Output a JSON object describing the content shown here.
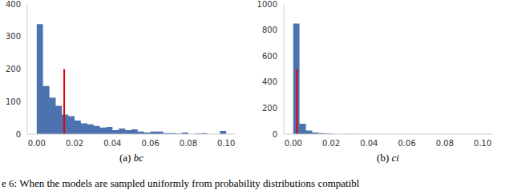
{
  "chart_data": [
    {
      "type": "histogram",
      "title": "(a) bc",
      "color": "#4c72b0",
      "bins": [
        0,
        0.0033,
        0.0067,
        0.01,
        0.0133,
        0.0167,
        0.02,
        0.0233,
        0.0267,
        0.03,
        0.0333,
        0.0367,
        0.04,
        0.0433,
        0.0467,
        0.05,
        0.0533,
        0.0567,
        0.06,
        0.0633,
        0.0667,
        0.07,
        0.0733,
        0.0767,
        0.08,
        0.0833,
        0.0867,
        0.09,
        0.0933,
        0.0967,
        0.1
      ],
      "counts": [
        338,
        148,
        112,
        87,
        60,
        55,
        42,
        33,
        30,
        25,
        20,
        22,
        12,
        17,
        12,
        15,
        8,
        5,
        8,
        8,
        3,
        3,
        2,
        5,
        0,
        2,
        3,
        0,
        0,
        10
      ],
      "xlim": [
        -0.005,
        0.105
      ],
      "xticks": [
        {
          "value": 0,
          "label": "0.00"
        },
        {
          "value": 0.02,
          "label": "0.02"
        },
        {
          "value": 0.04,
          "label": "0.04"
        },
        {
          "value": 0.06,
          "label": "0.06"
        },
        {
          "value": 0.08,
          "label": "0.08"
        },
        {
          "value": 0.1,
          "label": "0.10"
        }
      ],
      "ylim": [
        0,
        400
      ],
      "yticks": [
        0,
        100,
        200,
        300,
        400
      ],
      "reference_line": {
        "x": 0.0145,
        "y": 200,
        "color": "#e8000b"
      }
    },
    {
      "type": "histogram",
      "title": "(b) ci",
      "color": "#4c72b0",
      "bins": [
        0,
        0.0033,
        0.0067,
        0.01,
        0.0133,
        0.0167,
        0.02,
        0.0233,
        0.0267,
        0.03,
        0.0333,
        0.0367,
        0.04,
        0.0433,
        0.0467,
        0.05,
        0.0533,
        0.0567,
        0.06,
        0.0633,
        0.0667,
        0.07,
        0.0733,
        0.0767,
        0.08,
        0.0833,
        0.0867,
        0.09,
        0.0933,
        0.0967,
        0.1
      ],
      "counts": [
        850,
        80,
        28,
        12,
        8,
        4,
        2,
        0,
        2,
        1,
        0,
        0,
        0,
        0,
        0,
        0,
        0,
        0,
        0,
        0,
        0,
        0,
        0,
        0,
        0,
        0,
        0,
        0,
        0,
        0
      ],
      "xlim": [
        -0.005,
        0.105
      ],
      "xticks": [
        {
          "value": 0,
          "label": "0.00"
        },
        {
          "value": 0.02,
          "label": "0.02"
        },
        {
          "value": 0.04,
          "label": "0.04"
        },
        {
          "value": 0.06,
          "label": "0.06"
        },
        {
          "value": 0.08,
          "label": "0.08"
        },
        {
          "value": 0.1,
          "label": "0.10"
        }
      ],
      "ylim": [
        0,
        1000
      ],
      "yticks": [
        0,
        200,
        400,
        600,
        800,
        1000
      ],
      "reference_line": {
        "x": 0.002,
        "y": 500,
        "color": "#e8000b"
      }
    }
  ],
  "caption": "e 6: When the models are sampled uniformly from probability distributions compatibl"
}
